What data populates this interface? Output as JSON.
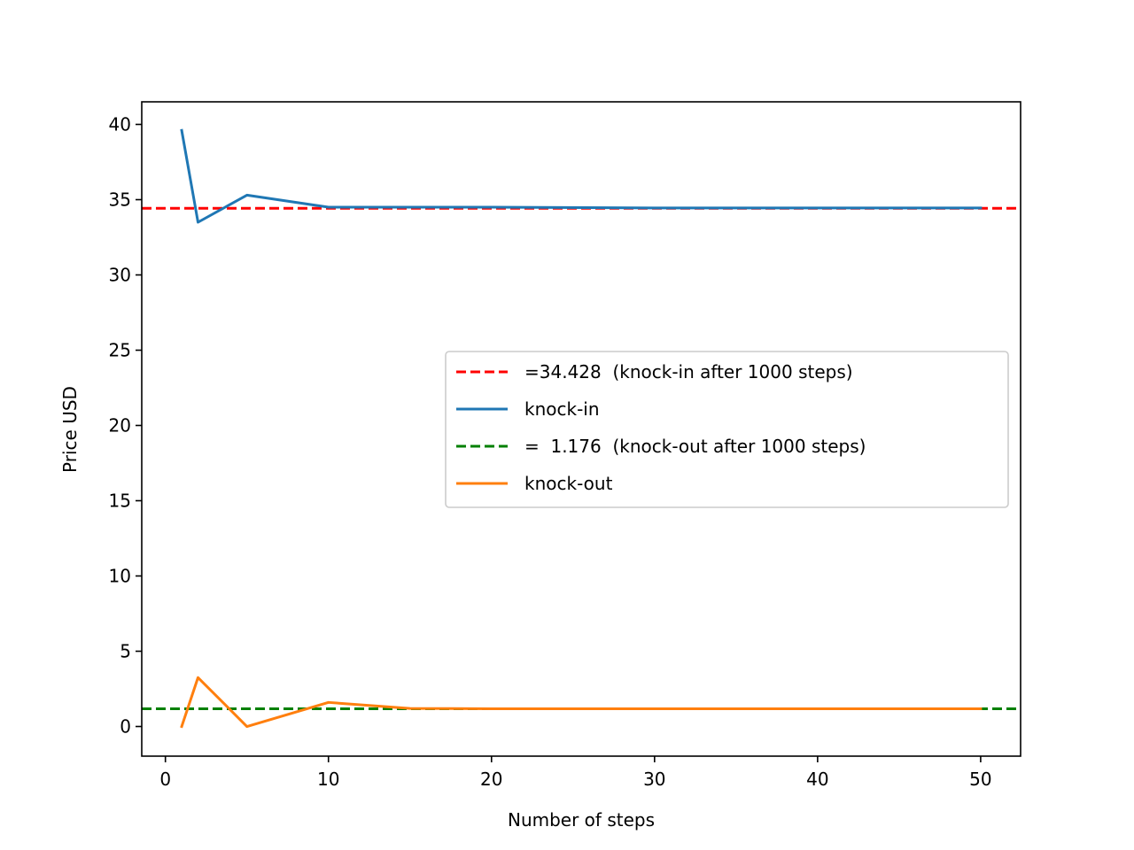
{
  "chart_data": {
    "type": "line",
    "title": "",
    "xlabel": "Number of steps",
    "ylabel": "Price USD",
    "xlim": [
      -1.45,
      52.45
    ],
    "ylim": [
      -1.97,
      41.5
    ],
    "xticks": [
      0,
      10,
      20,
      30,
      40,
      50
    ],
    "yticks": [
      0,
      5,
      10,
      15,
      20,
      25,
      30,
      35,
      40
    ],
    "grid": false,
    "legend_position": "center-right",
    "series": [
      {
        "name": "knock-in",
        "color": "#1f77b4",
        "style": "solid",
        "x": [
          1,
          2,
          5,
          10,
          15,
          20,
          30,
          40,
          50
        ],
        "y": [
          39.6,
          33.5,
          35.3,
          34.5,
          34.5,
          34.5,
          34.45,
          34.45,
          34.45
        ]
      },
      {
        "name": "knock-out",
        "color": "#ff7f0e",
        "style": "solid",
        "x": [
          1,
          2,
          5,
          10,
          15,
          20,
          30,
          40,
          50
        ],
        "y": [
          0.0,
          3.25,
          0.0,
          1.6,
          1.2,
          1.18,
          1.18,
          1.18,
          1.18
        ]
      }
    ],
    "reference_lines": [
      {
        "name": "=34.428  (knock-in after 1000 steps)",
        "value": 34.428,
        "color": "#ff0000",
        "style": "dashed"
      },
      {
        "name": "=  1.176  (knock-out after 1000 steps)",
        "value": 1.176,
        "color": "#008000",
        "style": "dashed"
      }
    ],
    "legend_order": [
      {
        "label": "=34.428  (knock-in after 1000 steps)",
        "color": "#ff0000",
        "style": "dashed"
      },
      {
        "label": "knock-in",
        "color": "#1f77b4",
        "style": "solid"
      },
      {
        "label": "=  1.176  (knock-out after 1000 steps)",
        "color": "#008000",
        "style": "dashed"
      },
      {
        "label": "knock-out",
        "color": "#ff7f0e",
        "style": "solid"
      }
    ]
  }
}
